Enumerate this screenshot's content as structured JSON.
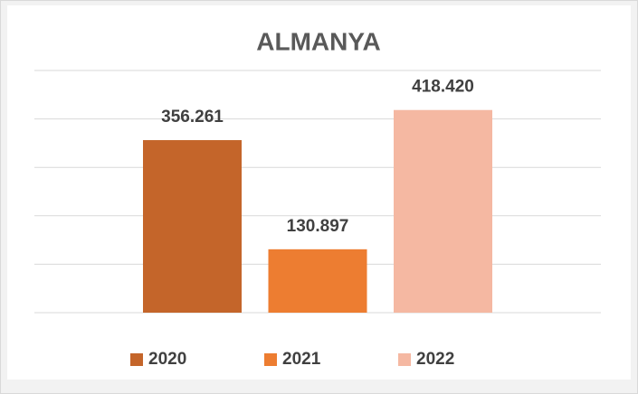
{
  "chart_data": {
    "type": "bar",
    "title": "ALMANYA",
    "categories": [
      null
    ],
    "series": [
      {
        "name": "2020",
        "color": "#c4652a",
        "values": [
          356261
        ],
        "value_labels": [
          "356.261"
        ]
      },
      {
        "name": "2021",
        "color": "#ed7d31",
        "values": [
          130897
        ],
        "value_labels": [
          "130.897"
        ]
      },
      {
        "name": "2022",
        "color": "#f5b8a2",
        "values": [
          418420
        ],
        "value_labels": [
          "418.420"
        ]
      }
    ],
    "ylim": [
      0,
      500000
    ],
    "yticks": [
      0,
      100000,
      200000,
      300000,
      400000,
      500000
    ],
    "grid": true,
    "legend": "bottom"
  }
}
